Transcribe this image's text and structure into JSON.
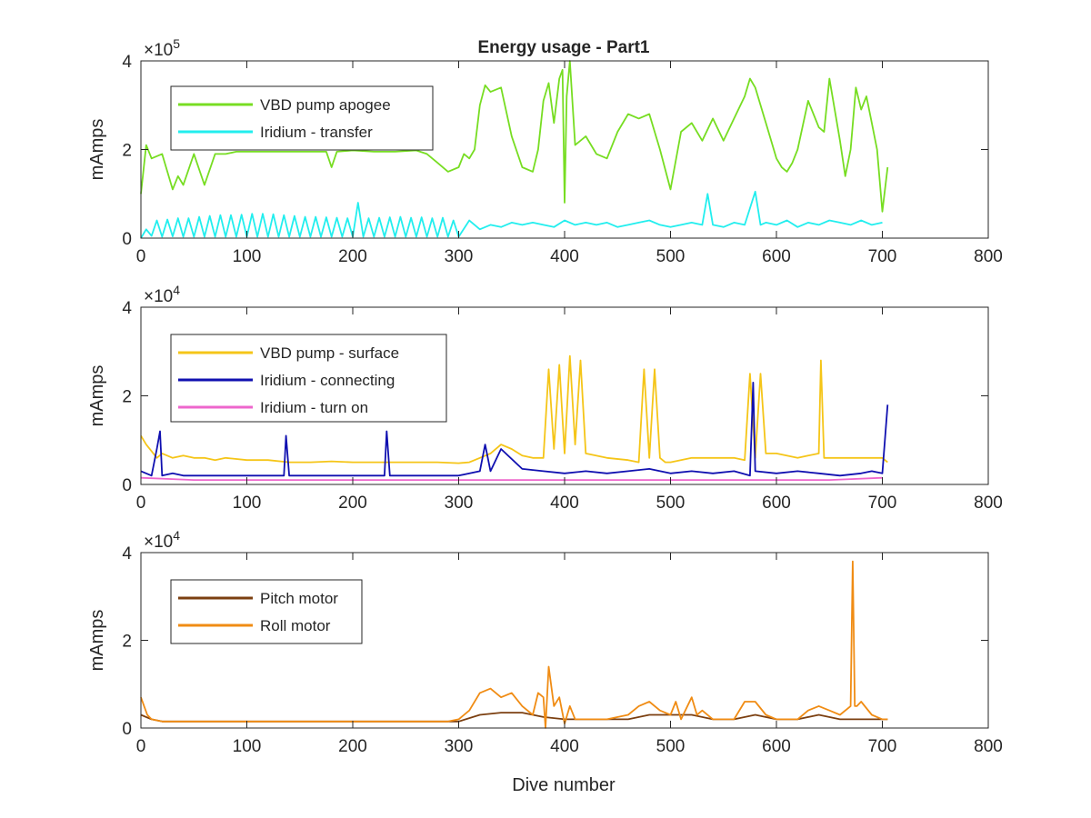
{
  "figure": {
    "title": "Energy usage - Part1",
    "xlabel": "Dive number"
  },
  "chart_data": [
    {
      "type": "line",
      "title": "Energy usage - Part1",
      "xlabel": "",
      "ylabel": "mAmps",
      "exponent_label": "×10",
      "exponent": "5",
      "xlim": [
        0,
        800
      ],
      "ylim": [
        0,
        400000
      ],
      "xticks": [
        "0",
        "100",
        "200",
        "300",
        "400",
        "500",
        "600",
        "700",
        "800"
      ],
      "yticks": [
        "0",
        "2",
        "4"
      ],
      "ytick_values": [
        0,
        200000,
        400000
      ],
      "legend_position": "top-left",
      "series": [
        {
          "name": "VBD pump apogee",
          "color": "#77dd22",
          "x": [
            0,
            5,
            10,
            20,
            30,
            35,
            40,
            50,
            60,
            70,
            80,
            90,
            100,
            120,
            140,
            160,
            175,
            180,
            185,
            200,
            220,
            240,
            260,
            270,
            280,
            290,
            300,
            305,
            310,
            315,
            320,
            325,
            330,
            340,
            350,
            360,
            370,
            375,
            380,
            385,
            390,
            395,
            398,
            400,
            402,
            405,
            410,
            420,
            430,
            440,
            450,
            460,
            470,
            480,
            490,
            500,
            510,
            520,
            530,
            540,
            550,
            560,
            570,
            575,
            580,
            590,
            600,
            605,
            610,
            615,
            620,
            630,
            640,
            645,
            650,
            660,
            665,
            670,
            675,
            680,
            685,
            690,
            695,
            700,
            705
          ],
          "y": [
            100000,
            210000,
            180000,
            190000,
            110000,
            140000,
            120000,
            190000,
            120000,
            190000,
            190000,
            195000,
            195000,
            195000,
            195000,
            195000,
            195000,
            160000,
            195000,
            198000,
            195000,
            195000,
            198000,
            190000,
            170000,
            150000,
            160000,
            190000,
            180000,
            200000,
            300000,
            345000,
            330000,
            340000,
            230000,
            160000,
            150000,
            200000,
            310000,
            350000,
            260000,
            360000,
            380000,
            80000,
            320000,
            400000,
            210000,
            230000,
            190000,
            180000,
            240000,
            280000,
            270000,
            280000,
            200000,
            110000,
            240000,
            260000,
            220000,
            270000,
            220000,
            270000,
            320000,
            360000,
            340000,
            260000,
            180000,
            160000,
            150000,
            170000,
            200000,
            310000,
            250000,
            240000,
            360000,
            220000,
            140000,
            200000,
            340000,
            290000,
            320000,
            260000,
            200000,
            60000,
            160000
          ]
        },
        {
          "name": "Iridium - transfer",
          "color": "#22eeee",
          "x": [
            0,
            5,
            10,
            15,
            20,
            25,
            30,
            35,
            40,
            45,
            50,
            55,
            60,
            65,
            70,
            75,
            80,
            85,
            90,
            95,
            100,
            105,
            110,
            115,
            120,
            125,
            130,
            135,
            140,
            145,
            150,
            155,
            160,
            165,
            170,
            175,
            180,
            185,
            190,
            195,
            200,
            205,
            210,
            215,
            220,
            225,
            230,
            235,
            240,
            245,
            250,
            255,
            260,
            265,
            270,
            275,
            280,
            285,
            290,
            295,
            300,
            310,
            320,
            330,
            340,
            350,
            360,
            370,
            380,
            390,
            400,
            410,
            420,
            430,
            440,
            450,
            460,
            470,
            480,
            490,
            500,
            510,
            520,
            530,
            535,
            540,
            550,
            560,
            570,
            580,
            585,
            590,
            600,
            610,
            620,
            630,
            640,
            650,
            660,
            670,
            680,
            690,
            700
          ],
          "y": [
            0,
            20000,
            5000,
            40000,
            3000,
            42000,
            4000,
            45000,
            3000,
            45000,
            3000,
            48000,
            3000,
            50000,
            3000,
            52000,
            3000,
            52000,
            3000,
            53000,
            3000,
            55000,
            3000,
            55000,
            3000,
            54000,
            3000,
            52000,
            3000,
            50000,
            3000,
            48000,
            3000,
            48000,
            3000,
            47000,
            3000,
            46000,
            3000,
            45000,
            3000,
            80000,
            3000,
            45000,
            3000,
            46000,
            3000,
            47000,
            3000,
            48000,
            3000,
            46000,
            3000,
            47000,
            3000,
            45000,
            3000,
            46000,
            3000,
            40000,
            3000,
            40000,
            20000,
            30000,
            25000,
            35000,
            30000,
            35000,
            30000,
            25000,
            40000,
            30000,
            35000,
            30000,
            35000,
            25000,
            30000,
            35000,
            40000,
            30000,
            25000,
            30000,
            35000,
            30000,
            100000,
            30000,
            25000,
            35000,
            30000,
            105000,
            30000,
            35000,
            30000,
            40000,
            25000,
            35000,
            30000,
            40000,
            35000,
            30000,
            40000,
            30000,
            35000
          ]
        }
      ]
    },
    {
      "type": "line",
      "title": "",
      "xlabel": "",
      "ylabel": "mAmps",
      "exponent_label": "×10",
      "exponent": "4",
      "xlim": [
        0,
        800
      ],
      "ylim": [
        0,
        40000
      ],
      "xticks": [
        "0",
        "100",
        "200",
        "300",
        "400",
        "500",
        "600",
        "700",
        "800"
      ],
      "yticks": [
        "0",
        "2",
        "4"
      ],
      "ytick_values": [
        0,
        20000,
        40000
      ],
      "legend_position": "top-left",
      "series": [
        {
          "name": "VBD pump - surface",
          "color": "#f5c518",
          "x": [
            0,
            5,
            10,
            15,
            20,
            30,
            40,
            50,
            60,
            70,
            80,
            100,
            120,
            140,
            160,
            180,
            200,
            220,
            240,
            260,
            280,
            300,
            310,
            320,
            330,
            340,
            350,
            360,
            370,
            380,
            385,
            390,
            395,
            400,
            405,
            410,
            415,
            420,
            440,
            460,
            470,
            475,
            480,
            485,
            490,
            495,
            500,
            520,
            540,
            560,
            570,
            575,
            580,
            585,
            590,
            600,
            620,
            630,
            640,
            642,
            645,
            650,
            660,
            680,
            700,
            705
          ],
          "y": [
            11000,
            9000,
            7500,
            6000,
            7000,
            6000,
            6500,
            6000,
            6000,
            5500,
            6000,
            5500,
            5500,
            5000,
            5000,
            5200,
            5000,
            5000,
            5000,
            5000,
            5000,
            4800,
            5000,
            6000,
            7000,
            9000,
            8000,
            6500,
            6000,
            6000,
            26000,
            8000,
            27000,
            7000,
            29000,
            9000,
            28000,
            7000,
            6000,
            5500,
            5000,
            26000,
            6000,
            26000,
            6000,
            5000,
            5000,
            6000,
            6000,
            6000,
            5500,
            25000,
            6000,
            25000,
            7000,
            7000,
            6000,
            6500,
            7000,
            28000,
            6000,
            6000,
            6000,
            6000,
            6000,
            5000
          ]
        },
        {
          "name": "Iridium - connecting",
          "color": "#1010b0",
          "x": [
            0,
            10,
            15,
            18,
            20,
            30,
            40,
            60,
            80,
            100,
            120,
            135,
            137,
            140,
            160,
            180,
            200,
            230,
            232,
            235,
            260,
            290,
            300,
            320,
            325,
            330,
            340,
            360,
            380,
            400,
            420,
            440,
            460,
            480,
            500,
            520,
            540,
            560,
            575,
            578,
            580,
            600,
            620,
            640,
            660,
            680,
            690,
            700,
            705
          ],
          "y": [
            3000,
            2000,
            8000,
            12000,
            2000,
            2500,
            2000,
            2000,
            2000,
            2000,
            2000,
            2000,
            11000,
            2000,
            2000,
            2000,
            2000,
            2000,
            12000,
            2000,
            2000,
            2000,
            2000,
            3000,
            9000,
            3000,
            8000,
            3500,
            3000,
            2500,
            3000,
            2500,
            3000,
            3500,
            2500,
            3000,
            2500,
            3000,
            2000,
            23000,
            3000,
            2500,
            3000,
            2500,
            2000,
            2500,
            3000,
            2500,
            18000
          ]
        },
        {
          "name": "Iridium - turn on",
          "color": "#ee66cc",
          "x": [
            0,
            50,
            100,
            150,
            200,
            250,
            300,
            350,
            400,
            450,
            500,
            550,
            600,
            650,
            700
          ],
          "y": [
            1500,
            1000,
            1000,
            1000,
            1000,
            1000,
            1000,
            1000,
            1000,
            1000,
            1000,
            1000,
            1000,
            1000,
            1500
          ]
        }
      ]
    },
    {
      "type": "line",
      "title": "",
      "xlabel": "Dive number",
      "ylabel": "mAmps",
      "exponent_label": "×10",
      "exponent": "4",
      "xlim": [
        0,
        800
      ],
      "ylim": [
        0,
        40000
      ],
      "xticks": [
        "0",
        "100",
        "200",
        "300",
        "400",
        "500",
        "600",
        "700",
        "800"
      ],
      "yticks": [
        "0",
        "2",
        "4"
      ],
      "ytick_values": [
        0,
        20000,
        40000
      ],
      "legend_position": "top-left",
      "series": [
        {
          "name": "Pitch motor",
          "color": "#7b3f10",
          "x": [
            0,
            10,
            20,
            50,
            100,
            150,
            200,
            250,
            290,
            300,
            320,
            340,
            360,
            380,
            400,
            420,
            440,
            460,
            480,
            500,
            520,
            540,
            560,
            580,
            600,
            620,
            640,
            660,
            680,
            700,
            705
          ],
          "y": [
            3000,
            2000,
            1500,
            1500,
            1500,
            1500,
            1500,
            1500,
            1500,
            1500,
            3000,
            3500,
            3500,
            2500,
            2000,
            2000,
            2000,
            2000,
            3000,
            3000,
            3000,
            2000,
            2000,
            3000,
            2000,
            2000,
            3000,
            2000,
            2000,
            2000,
            2000
          ]
        },
        {
          "name": "Roll motor",
          "color": "#f08c14",
          "x": [
            0,
            3,
            6,
            10,
            20,
            40,
            60,
            80,
            100,
            150,
            200,
            250,
            290,
            300,
            310,
            320,
            330,
            340,
            350,
            360,
            370,
            375,
            380,
            382,
            385,
            390,
            395,
            400,
            405,
            410,
            420,
            440,
            460,
            470,
            480,
            490,
            500,
            505,
            510,
            520,
            525,
            530,
            540,
            560,
            570,
            580,
            590,
            600,
            620,
            630,
            640,
            650,
            660,
            670,
            672,
            674,
            676,
            680,
            690,
            700,
            705
          ],
          "y": [
            7000,
            5000,
            3000,
            2000,
            1500,
            1500,
            1500,
            1500,
            1500,
            1500,
            1500,
            1500,
            1500,
            2000,
            4000,
            8000,
            9000,
            7000,
            8000,
            5000,
            3000,
            8000,
            7000,
            0,
            14000,
            5000,
            7000,
            1000,
            5000,
            2000,
            2000,
            2000,
            3000,
            5000,
            6000,
            4000,
            3000,
            6000,
            2000,
            7000,
            3000,
            4000,
            2000,
            2000,
            6000,
            6000,
            3000,
            2000,
            2000,
            4000,
            5000,
            4000,
            3000,
            5000,
            38000,
            5000,
            5000,
            6000,
            3000,
            2000,
            2000
          ]
        }
      ]
    }
  ]
}
